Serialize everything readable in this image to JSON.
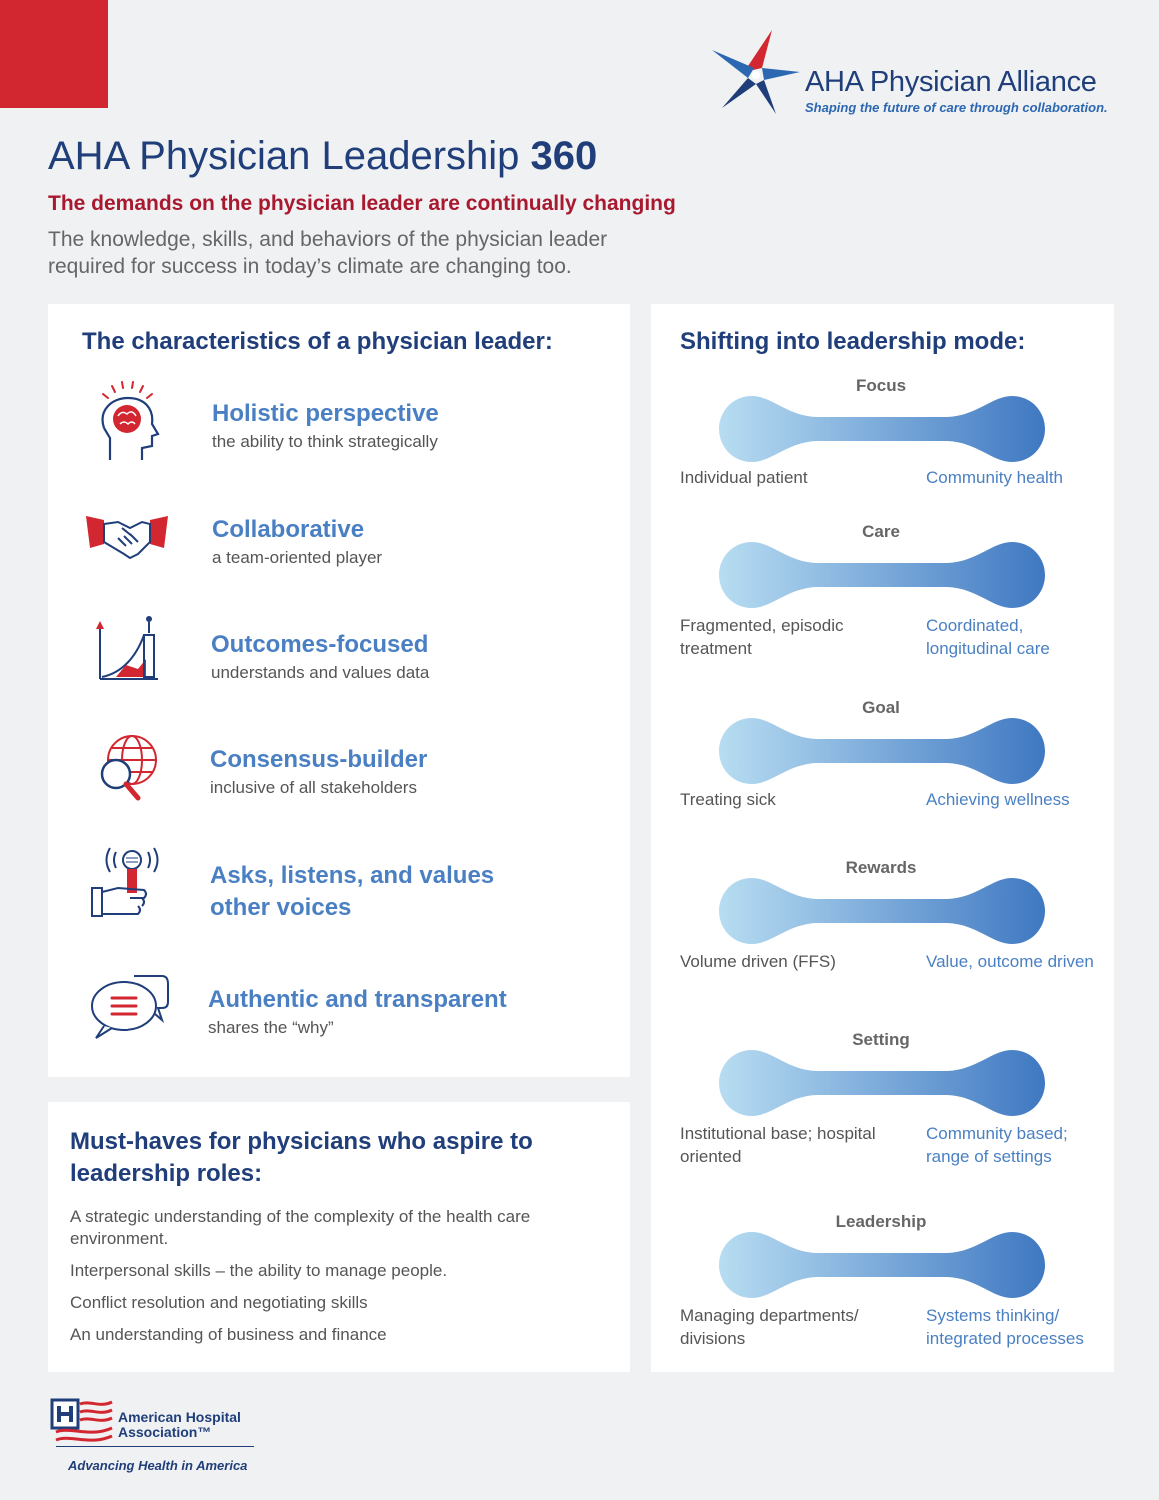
{
  "brand": {
    "name": "AHA Physician Alliance",
    "tagline": "Shaping the future of care through collaboration."
  },
  "header": {
    "title_prefix": "AHA Physician Leadership ",
    "title_bold": "360",
    "subtitle": "The demands on the physician leader are continually changing",
    "intro": "The knowledge, skills, and behaviors of the physician leader required for success in today’s climate are changing too."
  },
  "characteristics": {
    "heading": "The characteristics of a physician leader:",
    "items": [
      {
        "title": "Holistic perspective",
        "desc": "the ability to think strategically",
        "icon": "brain-head-icon"
      },
      {
        "title": "Collaborative",
        "desc": "a team-oriented player",
        "icon": "handshake-icon"
      },
      {
        "title": "Outcomes-focused",
        "desc": "understands and values data",
        "icon": "growth-chart-icon"
      },
      {
        "title": "Consensus-builder",
        "desc": "inclusive of all stakeholders",
        "icon": "globe-magnifier-icon"
      },
      {
        "title": "Asks, listens, and values other voices",
        "desc": "",
        "icon": "microphone-hand-icon"
      },
      {
        "title": "Authentic and transparent",
        "desc": "shares the “why”",
        "icon": "speech-bubbles-icon"
      }
    ]
  },
  "must_haves": {
    "heading": "Must-haves for physicians who aspire to leadership roles:",
    "items": [
      "A strategic understanding of the complexity of the health care environment.",
      "Interpersonal skills – the ability to manage people.",
      "Conflict resolution and negotiating skills",
      "An understanding of business and finance"
    ]
  },
  "shifting": {
    "heading": "Shifting into leadership mode:",
    "items": [
      {
        "label": "Focus",
        "from": "Individual patient",
        "to": "Community health"
      },
      {
        "label": "Care",
        "from": "Fragmented, episodic treatment",
        "to": "Coordinated, longitudinal care"
      },
      {
        "label": "Goal",
        "from": "Treating sick",
        "to": "Achieving wellness"
      },
      {
        "label": "Rewards",
        "from": "Volume driven (FFS)",
        "to": "Value, outcome driven"
      },
      {
        "label": "Setting",
        "from": "Institutional base; hospital oriented",
        "to": "Community based; range of settings"
      },
      {
        "label": "Leadership",
        "from": "Managing departments/ divisions",
        "to": "Systems thinking/ integrated processes"
      }
    ]
  },
  "footer": {
    "org_name": "American Hospital Association™",
    "tagline": "Advancing Health in America"
  },
  "colors": {
    "navy": "#1f3e7a",
    "accent_red": "#d22630",
    "dark_red": "#a8182e",
    "blue": "#4a80c3",
    "light_blue": "#b5daf1"
  }
}
